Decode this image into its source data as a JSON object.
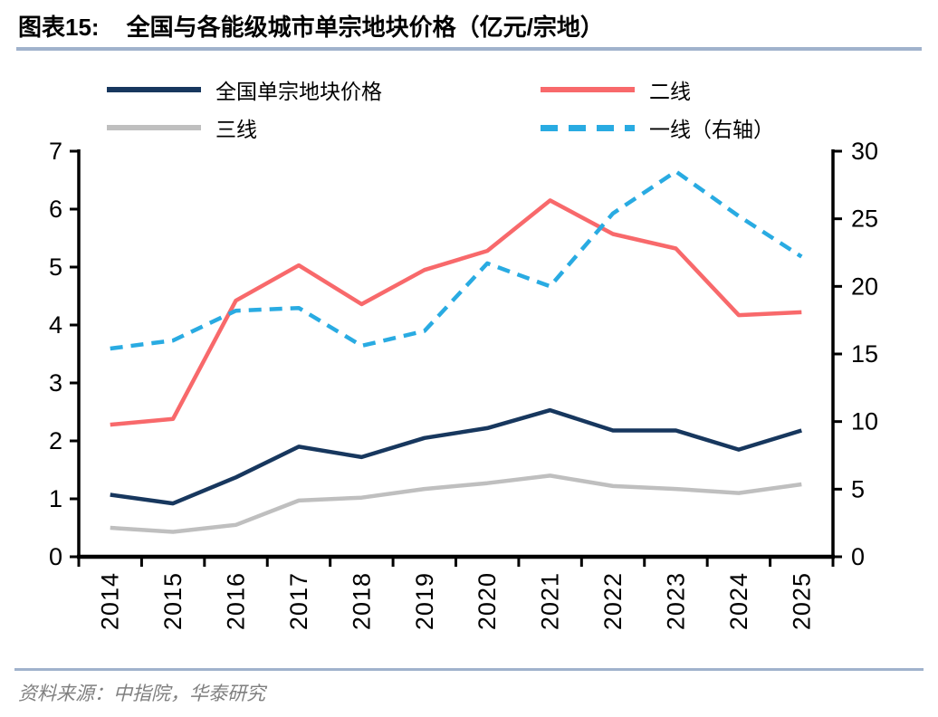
{
  "title": {
    "label": "图表15:",
    "text": "全国与各能级城市单宗地块价格（亿元/宗地）"
  },
  "legend": [
    {
      "name": "全国单宗地块价格",
      "color": "#17375E",
      "style": "solid"
    },
    {
      "name": "二线",
      "color": "#F8696B",
      "style": "solid"
    },
    {
      "name": "三线",
      "color": "#BFBFBF",
      "style": "solid"
    },
    {
      "name": "一线（右轴）",
      "color": "#29ABE2",
      "style": "dashed"
    }
  ],
  "chart_data": {
    "type": "line",
    "title": "全国与各能级城市单宗地块价格（亿元/宗地）",
    "categories": [
      "2014",
      "2015",
      "2016",
      "2017",
      "2018",
      "2019",
      "2020",
      "2021",
      "2022",
      "2023",
      "2024",
      "2025"
    ],
    "series": [
      {
        "key": "national",
        "name": "全国单宗地块价格",
        "axis": "left",
        "color": "#17375E",
        "style": "solid",
        "values": [
          1.07,
          0.92,
          1.37,
          1.9,
          1.72,
          2.05,
          2.22,
          2.53,
          2.18,
          2.18,
          1.85,
          2.18
        ]
      },
      {
        "key": "tier2",
        "name": "二线",
        "axis": "left",
        "color": "#F8696B",
        "style": "solid",
        "values": [
          2.28,
          2.38,
          4.42,
          5.03,
          4.36,
          4.95,
          5.28,
          6.15,
          5.57,
          5.32,
          4.17,
          4.22
        ]
      },
      {
        "key": "tier3",
        "name": "三线",
        "axis": "left",
        "color": "#BFBFBF",
        "style": "solid",
        "values": [
          0.5,
          0.43,
          0.55,
          0.97,
          1.02,
          1.17,
          1.27,
          1.4,
          1.22,
          1.17,
          1.1,
          1.25
        ]
      },
      {
        "key": "tier1",
        "name": "一线（右轴）",
        "axis": "right",
        "color": "#29ABE2",
        "style": "dashed",
        "values": [
          15.4,
          16.0,
          18.2,
          18.4,
          15.6,
          16.7,
          21.7,
          20.0,
          25.4,
          28.5,
          25.2,
          22.2
        ]
      }
    ],
    "left_axis": {
      "min": 0,
      "max": 7,
      "step": 1,
      "ticks": [
        "0",
        "1",
        "2",
        "3",
        "4",
        "5",
        "6",
        "7"
      ]
    },
    "right_axis": {
      "min": 0,
      "max": 30,
      "step": 5,
      "ticks": [
        "0",
        "5",
        "10",
        "15",
        "20",
        "25",
        "30"
      ]
    },
    "grid": false,
    "legend_position": "top"
  },
  "colors": {
    "rule": "#A0B2CC",
    "axis": "#000000",
    "source_text": "#7f7f7f"
  },
  "source": "资料来源：中指院，华泰研究"
}
